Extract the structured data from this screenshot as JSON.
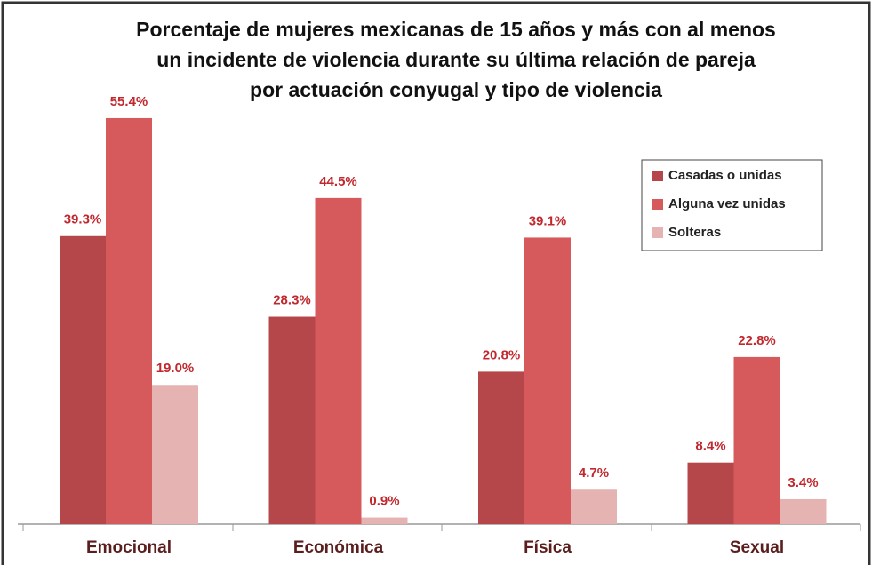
{
  "chart_data": {
    "type": "bar",
    "title": [
      "Porcentaje de mujeres mexicanas de 15 años y más con al menos",
      "un incidente de violencia durante su última relación de pareja",
      "por actuación conyugal y tipo de violencia"
    ],
    "categories": [
      "Emocional",
      "Económica",
      "Física",
      "Sexual"
    ],
    "series": [
      {
        "name": "Casadas o unidas",
        "color": "#b5474a",
        "values": [
          39.3,
          28.3,
          20.8,
          8.4
        ],
        "value_labels": [
          "39.3%",
          "28.3%",
          "20.8%",
          "8.4%"
        ]
      },
      {
        "name": "Alguna vez unidas",
        "color": "#d65a5c",
        "values": [
          55.4,
          44.5,
          39.1,
          22.8
        ],
        "value_labels": [
          "55.4%",
          "44.5%",
          "39.1%",
          "22.8%"
        ]
      },
      {
        "name": "Solteras",
        "color": "#e6b3b3",
        "values": [
          19.0,
          0.9,
          4.7,
          3.4
        ],
        "value_labels": [
          "19.0%",
          "0.9%",
          "4.7%",
          "3.4%"
        ]
      }
    ],
    "legend": "upper right"
  }
}
